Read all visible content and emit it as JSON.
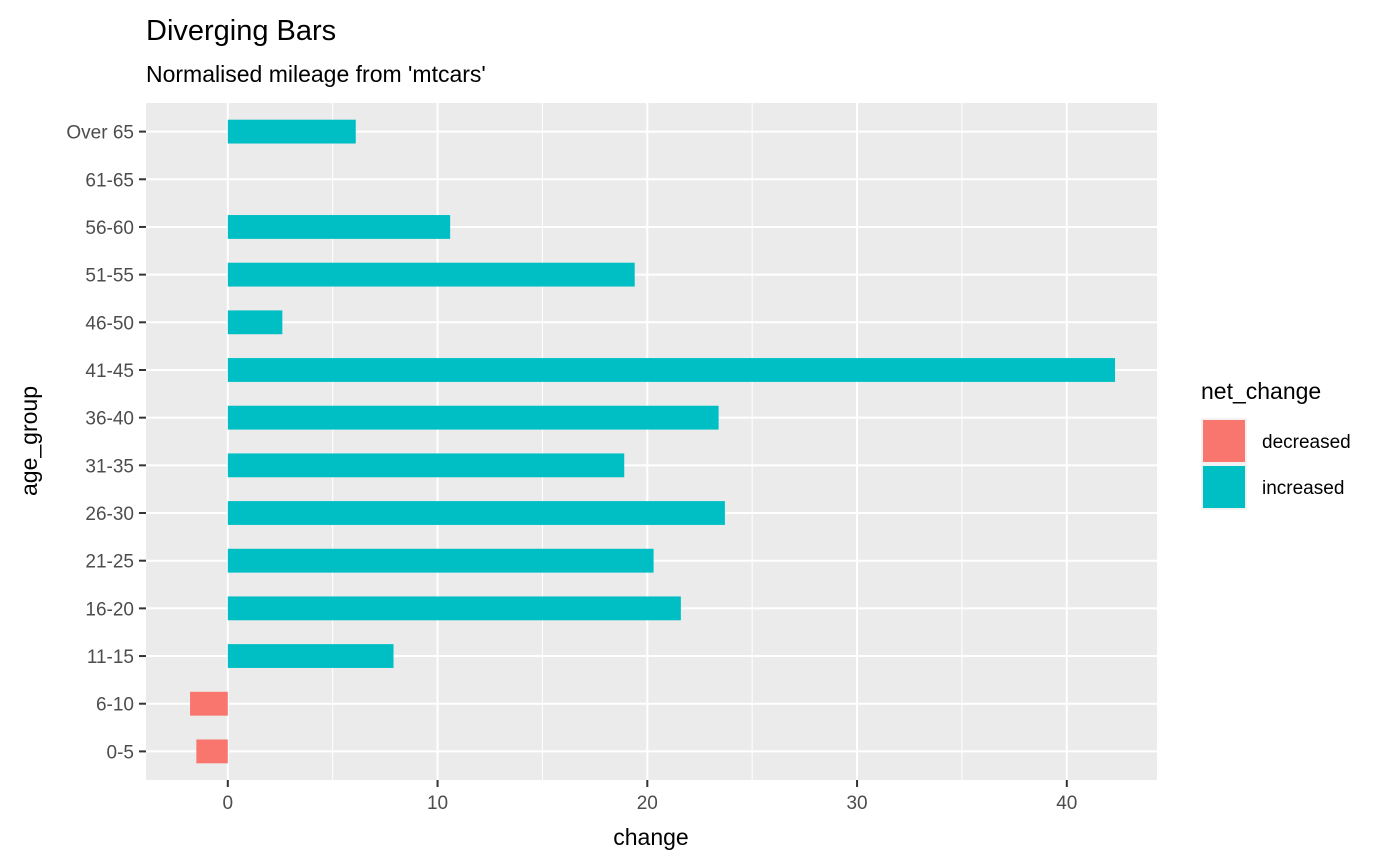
{
  "chart_data": {
    "type": "bar",
    "orientation": "horizontal",
    "title": "Diverging Bars",
    "subtitle": "Normalised mileage from 'mtcars'",
    "xlabel": "change",
    "ylabel": "age_group",
    "xlim": [
      -3.9,
      44.3
    ],
    "x_ticks": [
      0,
      10,
      20,
      30,
      40
    ],
    "grid": true,
    "legend": {
      "title": "net_change",
      "placement": "right",
      "entries": [
        {
          "label": "decreased",
          "color": "#F8766D"
        },
        {
          "label": "increased",
          "color": "#00BFC4"
        }
      ]
    },
    "categories": [
      "0-5",
      "6-10",
      "11-15",
      "16-20",
      "21-25",
      "26-30",
      "31-35",
      "36-40",
      "41-45",
      "46-50",
      "51-55",
      "56-60",
      "61-65",
      "Over 65"
    ],
    "values": [
      -1.5,
      -1.8,
      7.9,
      21.6,
      20.3,
      23.7,
      18.9,
      23.4,
      42.3,
      2.6,
      19.4,
      10.6,
      null,
      6.1
    ],
    "net_change": [
      "decreased",
      "decreased",
      "increased",
      "increased",
      "increased",
      "increased",
      "increased",
      "increased",
      "increased",
      "increased",
      "increased",
      "increased",
      null,
      "increased"
    ]
  }
}
